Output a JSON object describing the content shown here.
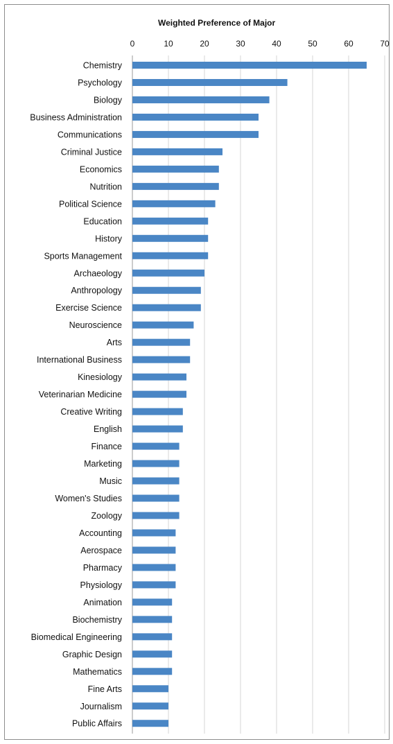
{
  "chart_data": {
    "type": "bar",
    "orientation": "horizontal",
    "title": "Weighted Preference of Major",
    "xlabel": "",
    "ylabel": "",
    "xlim": [
      0,
      70
    ],
    "xticks": [
      0,
      10,
      20,
      30,
      40,
      50,
      60,
      70
    ],
    "axis_position": "top",
    "grid": "vertical",
    "legend": "none",
    "bar_color": "#4a86c5",
    "categories": [
      "Chemistry",
      "Psychology",
      "Biology",
      "Business Administration",
      "Communications",
      "Criminal Justice",
      "Economics",
      "Nutrition",
      "Political Science",
      "Education",
      "History",
      "Sports Management",
      "Archaeology",
      "Anthropology",
      "Exercise Science",
      "Neuroscience",
      "Arts",
      "International Business",
      "Kinesiology",
      "Veterinarian Medicine",
      "Creative Writing",
      "English",
      "Finance",
      "Marketing",
      "Music",
      "Women's Studies",
      "Zoology",
      "Accounting",
      "Aerospace",
      "Pharmacy",
      "Physiology",
      "Animation",
      "Biochemistry",
      "Biomedical Engineering",
      "Graphic Design",
      "Mathematics",
      "Fine Arts",
      "Journalism",
      "Public Affairs"
    ],
    "values": [
      65,
      43,
      38,
      35,
      35,
      25,
      24,
      24,
      23,
      21,
      21,
      21,
      20,
      19,
      19,
      17,
      16,
      16,
      15,
      15,
      14,
      14,
      13,
      13,
      13,
      13,
      13,
      12,
      12,
      12,
      12,
      11,
      11,
      11,
      11,
      11,
      10,
      10,
      10
    ]
  }
}
